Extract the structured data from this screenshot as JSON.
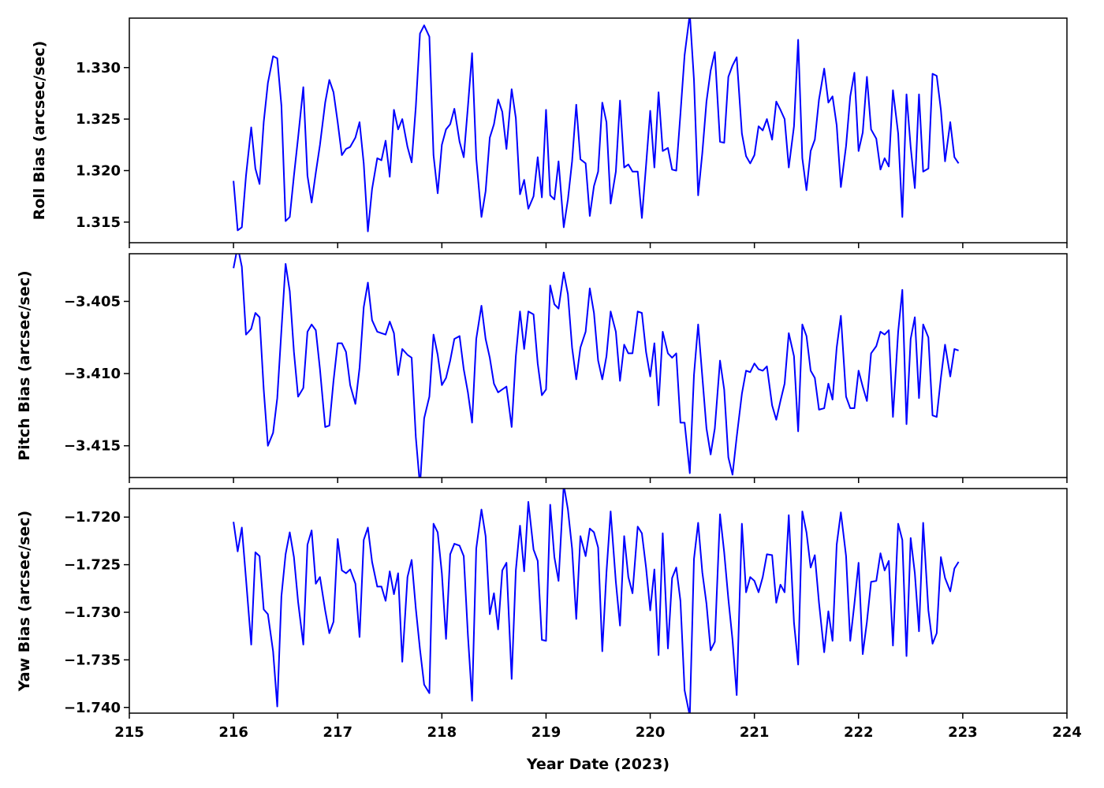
{
  "chart_data": {
    "type": "line",
    "line_color": "#0000ff",
    "grid": false,
    "shared_x": {
      "xlabel": "Year Date (2023)",
      "xlim": [
        215,
        224
      ],
      "xticks": [
        215,
        216,
        217,
        218,
        219,
        220,
        221,
        222,
        223,
        224
      ],
      "xtick_labels": [
        "215",
        "216",
        "217",
        "218",
        "219",
        "220",
        "221",
        "222",
        "223",
        "224"
      ]
    },
    "x": [
      216.0,
      216.04,
      216.08,
      216.12,
      216.17,
      216.21,
      216.25,
      216.29,
      216.33,
      216.38,
      216.42,
      216.46,
      216.5,
      216.54,
      216.58,
      216.62,
      216.67,
      216.71,
      216.75,
      216.79,
      216.83,
      216.88,
      216.92,
      216.96,
      217.0,
      217.04,
      217.08,
      217.12,
      217.17,
      217.21,
      217.25,
      217.29,
      217.33,
      217.38,
      217.42,
      217.46,
      217.5,
      217.54,
      217.58,
      217.62,
      217.67,
      217.71,
      217.75,
      217.79,
      217.83,
      217.88,
      217.92,
      217.96,
      218.0,
      218.04,
      218.08,
      218.12,
      218.17,
      218.21,
      218.25,
      218.29,
      218.33,
      218.38,
      218.42,
      218.46,
      218.5,
      218.54,
      218.58,
      218.62,
      218.67,
      218.71,
      218.75,
      218.79,
      218.83,
      218.88,
      218.92,
      218.96,
      219.0,
      219.04,
      219.08,
      219.12,
      219.17,
      219.21,
      219.25,
      219.29,
      219.33,
      219.38,
      219.42,
      219.46,
      219.5,
      219.54,
      219.58,
      219.62,
      219.67,
      219.71,
      219.75,
      219.79,
      219.83,
      219.88,
      219.92,
      219.96,
      220.0,
      220.04,
      220.08,
      220.12,
      220.17,
      220.21,
      220.25,
      220.29,
      220.33,
      220.38,
      220.42,
      220.46,
      220.5,
      220.54,
      220.58,
      220.62,
      220.67,
      220.71,
      220.75,
      220.79,
      220.83,
      220.88,
      220.92,
      220.96,
      221.0,
      221.04,
      221.08,
      221.12,
      221.17,
      221.21,
      221.25,
      221.29,
      221.33,
      221.38,
      221.42,
      221.46,
      221.5,
      221.54,
      221.58,
      221.62,
      221.67,
      221.71,
      221.75,
      221.79,
      221.83,
      221.88,
      221.92,
      221.96,
      222.0,
      222.04,
      222.08,
      222.12,
      222.17,
      222.21,
      222.25,
      222.29,
      222.33,
      222.38,
      222.42,
      222.46,
      222.5,
      222.54,
      222.58,
      222.62,
      222.67,
      222.71,
      222.75,
      222.79,
      222.83,
      222.88,
      222.92,
      222.96
    ],
    "panels": [
      {
        "ylabel": "Roll Bias (arcsec/sec)",
        "ylim": [
          1.313,
          1.3348
        ],
        "yticks": [
          1.315,
          1.32,
          1.325,
          1.33
        ],
        "ytick_labels": [
          "1.315",
          "1.320",
          "1.325",
          "1.330"
        ],
        "values": [
          1.319,
          1.3142,
          1.3145,
          1.3195,
          1.3242,
          1.3202,
          1.3187,
          1.3247,
          1.3285,
          1.3311,
          1.3309,
          1.3263,
          1.3151,
          1.3155,
          1.3195,
          1.3232,
          1.3281,
          1.3195,
          1.3169,
          1.3198,
          1.3225,
          1.3266,
          1.3288,
          1.3276,
          1.3247,
          1.3215,
          1.3221,
          1.3223,
          1.3232,
          1.3247,
          1.3207,
          1.3141,
          1.3182,
          1.3212,
          1.321,
          1.3229,
          1.3194,
          1.3259,
          1.324,
          1.325,
          1.3223,
          1.3208,
          1.3262,
          1.3333,
          1.3341,
          1.333,
          1.3215,
          1.3178,
          1.3225,
          1.324,
          1.3245,
          1.326,
          1.3228,
          1.3213,
          1.3262,
          1.3314,
          1.3212,
          1.3155,
          1.318,
          1.3232,
          1.3245,
          1.3269,
          1.3257,
          1.3221,
          1.3279,
          1.3251,
          1.3177,
          1.3191,
          1.3163,
          1.3175,
          1.3213,
          1.3174,
          1.3259,
          1.3176,
          1.3172,
          1.3209,
          1.3145,
          1.3172,
          1.3209,
          1.3264,
          1.3211,
          1.3207,
          1.3156,
          1.3185,
          1.3199,
          1.3266,
          1.3247,
          1.3168,
          1.3199,
          1.3268,
          1.3203,
          1.3206,
          1.3199,
          1.3199,
          1.3154,
          1.3205,
          1.3258,
          1.3203,
          1.3276,
          1.3219,
          1.3222,
          1.3201,
          1.32,
          1.3255,
          1.3312,
          1.3352,
          1.3288,
          1.3176,
          1.3217,
          1.3267,
          1.3297,
          1.3315,
          1.3228,
          1.3227,
          1.3291,
          1.3302,
          1.331,
          1.3236,
          1.3214,
          1.3207,
          1.3215,
          1.3243,
          1.3239,
          1.325,
          1.323,
          1.3267,
          1.3259,
          1.325,
          1.3203,
          1.3243,
          1.3327,
          1.3212,
          1.3181,
          1.3219,
          1.323,
          1.3269,
          1.3299,
          1.3266,
          1.3272,
          1.3244,
          1.3184,
          1.3224,
          1.3272,
          1.3295,
          1.3219,
          1.3237,
          1.3291,
          1.324,
          1.3231,
          1.3201,
          1.3212,
          1.3204,
          1.3278,
          1.3236,
          1.3155,
          1.3274,
          1.3223,
          1.3183,
          1.3274,
          1.3199,
          1.3202,
          1.3294,
          1.3292,
          1.3259,
          1.3209,
          1.3247,
          1.3213,
          1.3207
        ]
      },
      {
        "ylabel": "Pitch Bias (arcsec/sec)",
        "ylim": [
          -3.4172,
          -3.4017
        ],
        "yticks": [
          -3.415,
          -3.41,
          -3.405
        ],
        "ytick_labels": [
          "−3.415",
          "−3.410",
          "−3.405"
        ],
        "values": [
          -3.4027,
          -3.4012,
          -3.4026,
          -3.4073,
          -3.4069,
          -3.4058,
          -3.4061,
          -3.4111,
          -3.415,
          -3.4141,
          -3.4117,
          -3.407,
          -3.4024,
          -3.4043,
          -3.4085,
          -3.4116,
          -3.411,
          -3.4071,
          -3.4066,
          -3.407,
          -3.4097,
          -3.4137,
          -3.4136,
          -3.4105,
          -3.4079,
          -3.4079,
          -3.4085,
          -3.4108,
          -3.4121,
          -3.4096,
          -3.4054,
          -3.4037,
          -3.4063,
          -3.4071,
          -3.4072,
          -3.4073,
          -3.4064,
          -3.4072,
          -3.4101,
          -3.4083,
          -3.4087,
          -3.4089,
          -3.4144,
          -3.4178,
          -3.4131,
          -3.4116,
          -3.4073,
          -3.4087,
          -3.4108,
          -3.4103,
          -3.4091,
          -3.4076,
          -3.4074,
          -3.4097,
          -3.4113,
          -3.4134,
          -3.4076,
          -3.4053,
          -3.4076,
          -3.4089,
          -3.4107,
          -3.4113,
          -3.4111,
          -3.4109,
          -3.4137,
          -3.4088,
          -3.4057,
          -3.4083,
          -3.4057,
          -3.4059,
          -3.4093,
          -3.4115,
          -3.4111,
          -3.4039,
          -3.4052,
          -3.4055,
          -3.403,
          -3.4045,
          -3.4082,
          -3.4104,
          -3.4082,
          -3.4071,
          -3.4041,
          -3.4058,
          -3.4091,
          -3.4104,
          -3.4088,
          -3.4057,
          -3.4071,
          -3.4105,
          -3.408,
          -3.4086,
          -3.4086,
          -3.4057,
          -3.4058,
          -3.4085,
          -3.4102,
          -3.4079,
          -3.4122,
          -3.4071,
          -3.4086,
          -3.4089,
          -3.4086,
          -3.4134,
          -3.4134,
          -3.4169,
          -3.4101,
          -3.4066,
          -3.4102,
          -3.4138,
          -3.4156,
          -3.4138,
          -3.4091,
          -3.4111,
          -3.4158,
          -3.417,
          -3.4144,
          -3.4114,
          -3.4098,
          -3.4099,
          -3.4093,
          -3.4097,
          -3.4098,
          -3.4095,
          -3.4122,
          -3.4132,
          -3.4119,
          -3.4107,
          -3.4072,
          -3.4088,
          -3.414,
          -3.4066,
          -3.4074,
          -3.4098,
          -3.4103,
          -3.4125,
          -3.4124,
          -3.4107,
          -3.4118,
          -3.4082,
          -3.406,
          -3.4116,
          -3.4124,
          -3.4124,
          -3.4098,
          -3.4109,
          -3.4119,
          -3.4086,
          -3.4081,
          -3.4071,
          -3.4073,
          -3.407,
          -3.413,
          -3.4071,
          -3.4042,
          -3.4135,
          -3.4076,
          -3.4061,
          -3.4117,
          -3.4066,
          -3.4075,
          -3.4129,
          -3.413,
          -3.4103,
          -3.408,
          -3.4102,
          -3.4083,
          -3.4084
        ]
      },
      {
        "ylabel": "Yaw Bias (arcsec/sec)",
        "ylim": [
          -1.7406,
          -1.717
        ],
        "yticks": [
          -1.74,
          -1.735,
          -1.73,
          -1.725,
          -1.72
        ],
        "ytick_labels": [
          "−1.740",
          "−1.735",
          "−1.730",
          "−1.725",
          "−1.720"
        ],
        "values": [
          -1.7205,
          -1.7236,
          -1.7211,
          -1.7265,
          -1.7334,
          -1.7237,
          -1.7241,
          -1.7297,
          -1.7302,
          -1.7341,
          -1.7399,
          -1.7283,
          -1.7239,
          -1.7216,
          -1.7242,
          -1.7289,
          -1.7334,
          -1.7229,
          -1.7214,
          -1.727,
          -1.7263,
          -1.7298,
          -1.7322,
          -1.731,
          -1.7223,
          -1.7256,
          -1.7259,
          -1.7255,
          -1.727,
          -1.7326,
          -1.7224,
          -1.7211,
          -1.7247,
          -1.7273,
          -1.7273,
          -1.7288,
          -1.7257,
          -1.7281,
          -1.7259,
          -1.7352,
          -1.7263,
          -1.7245,
          -1.7296,
          -1.7339,
          -1.7376,
          -1.7385,
          -1.7207,
          -1.7216,
          -1.7259,
          -1.7328,
          -1.7239,
          -1.7228,
          -1.723,
          -1.7241,
          -1.7324,
          -1.7393,
          -1.7233,
          -1.7192,
          -1.722,
          -1.7302,
          -1.728,
          -1.7318,
          -1.7256,
          -1.7248,
          -1.737,
          -1.7256,
          -1.7209,
          -1.7257,
          -1.7184,
          -1.7234,
          -1.7246,
          -1.7329,
          -1.733,
          -1.7187,
          -1.7242,
          -1.7267,
          -1.7166,
          -1.7192,
          -1.7233,
          -1.7307,
          -1.722,
          -1.7241,
          -1.7212,
          -1.7216,
          -1.7232,
          -1.7341,
          -1.7258,
          -1.7194,
          -1.7268,
          -1.7314,
          -1.722,
          -1.7263,
          -1.728,
          -1.721,
          -1.7217,
          -1.7253,
          -1.7298,
          -1.7255,
          -1.7345,
          -1.7217,
          -1.7338,
          -1.7264,
          -1.7253,
          -1.7288,
          -1.7382,
          -1.7409,
          -1.7244,
          -1.7206,
          -1.7258,
          -1.7291,
          -1.734,
          -1.7331,
          -1.7197,
          -1.7237,
          -1.7286,
          -1.7329,
          -1.7387,
          -1.7207,
          -1.7279,
          -1.7263,
          -1.7267,
          -1.7279,
          -1.7263,
          -1.7239,
          -1.724,
          -1.729,
          -1.7271,
          -1.7279,
          -1.7198,
          -1.7311,
          -1.7355,
          -1.7194,
          -1.7216,
          -1.7253,
          -1.724,
          -1.729,
          -1.7342,
          -1.7299,
          -1.733,
          -1.7229,
          -1.7195,
          -1.7241,
          -1.733,
          -1.7291,
          -1.7248,
          -1.7344,
          -1.731,
          -1.7268,
          -1.7267,
          -1.7238,
          -1.7256,
          -1.7246,
          -1.7335,
          -1.7207,
          -1.7224,
          -1.7346,
          -1.7222,
          -1.7259,
          -1.732,
          -1.7206,
          -1.7298,
          -1.7333,
          -1.7322,
          -1.7242,
          -1.7264,
          -1.7278,
          -1.7254,
          -1.7247
        ]
      }
    ]
  }
}
